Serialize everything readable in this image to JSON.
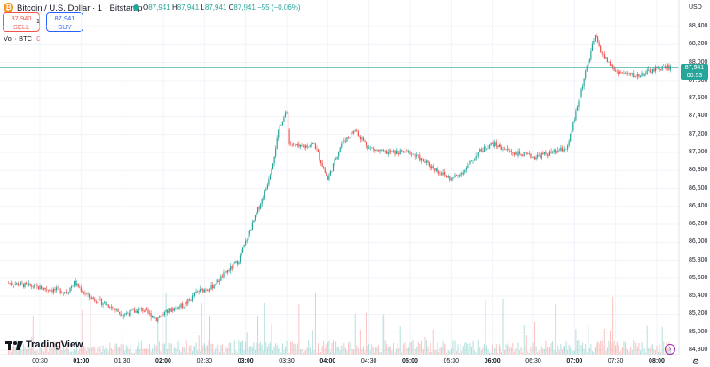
{
  "header": {
    "title": "Bitcoin / U.S. Dollar · 1 · Bitstamp",
    "ohlc": {
      "open_label": "O",
      "open": "87,941",
      "high_label": "H",
      "high": "87,941",
      "low_label": "L",
      "low": "87,941",
      "close_label": "C",
      "close": "87,941",
      "change": "−55 (−0.06%)"
    },
    "currency": "USD"
  },
  "trade": {
    "sell_price": "87,940",
    "sell_label": "SELL",
    "spread": "1",
    "buy_price": "87,941",
    "buy_label": "BUY"
  },
  "volume_indicator": {
    "label": "Vol · BTC",
    "value": "0"
  },
  "price_tag": {
    "price": "87,941",
    "countdown": "00:53"
  },
  "brand": {
    "name": "TradingView"
  },
  "colors": {
    "up": "#26a69a",
    "down": "#ef5350",
    "line": "#26a69a"
  },
  "y_axis_labels": [
    "88,400",
    "88,200",
    "88,000",
    "87,800",
    "87,600",
    "87,400",
    "87,200",
    "87,000",
    "86,800",
    "86,600",
    "86,400",
    "86,200",
    "86,000",
    "85,800",
    "85,600",
    "85,400",
    "85,200",
    "85,000",
    "84,800"
  ],
  "x_axis_labels": [
    {
      "text": "00:30",
      "bold": false
    },
    {
      "text": "01:00",
      "bold": true
    },
    {
      "text": "01:30",
      "bold": false
    },
    {
      "text": "02:00",
      "bold": true
    },
    {
      "text": "02:30",
      "bold": false
    },
    {
      "text": "03:00",
      "bold": true
    },
    {
      "text": "03:30",
      "bold": false
    },
    {
      "text": "04:00",
      "bold": true
    },
    {
      "text": "04:30",
      "bold": false
    },
    {
      "text": "05:00",
      "bold": true
    },
    {
      "text": "05:30",
      "bold": false
    },
    {
      "text": "06:00",
      "bold": true
    },
    {
      "text": "06:30",
      "bold": false
    },
    {
      "text": "07:00",
      "bold": true
    },
    {
      "text": "07:30",
      "bold": false
    },
    {
      "text": "08:00",
      "bold": true
    }
  ],
  "chart_data": {
    "type": "candlestick",
    "ylim": [
      84800,
      88500
    ],
    "x_start": "00:07",
    "x_end": "08:10",
    "interval_minutes": 1,
    "price_path": [
      [
        "00:07",
        85550
      ],
      [
        "00:20",
        85520
      ],
      [
        "00:35",
        85480
      ],
      [
        "00:50",
        85450
      ],
      [
        "00:55",
        85550
      ],
      [
        "01:05",
        85400
      ],
      [
        "01:20",
        85300
      ],
      [
        "01:30",
        85200
      ],
      [
        "01:45",
        85250
      ],
      [
        "01:55",
        85150
      ],
      [
        "02:05",
        85250
      ],
      [
        "02:15",
        85300
      ],
      [
        "02:25",
        85450
      ],
      [
        "02:35",
        85500
      ],
      [
        "02:45",
        85650
      ],
      [
        "02:55",
        85800
      ],
      [
        "03:05",
        86200
      ],
      [
        "03:10",
        86400
      ],
      [
        "03:15",
        86600
      ],
      [
        "03:20",
        86900
      ],
      [
        "03:25",
        87300
      ],
      [
        "03:30",
        87450
      ],
      [
        "03:32",
        87100
      ],
      [
        "03:40",
        87050
      ],
      [
        "03:50",
        87100
      ],
      [
        "04:00",
        86700
      ],
      [
        "04:10",
        87100
      ],
      [
        "04:20",
        87250
      ],
      [
        "04:30",
        87050
      ],
      [
        "04:40",
        87000
      ],
      [
        "05:00",
        87000
      ],
      [
        "05:15",
        86850
      ],
      [
        "05:30",
        86700
      ],
      [
        "05:40",
        86800
      ],
      [
        "05:50",
        87000
      ],
      [
        "06:00",
        87100
      ],
      [
        "06:15",
        87000
      ],
      [
        "06:30",
        86950
      ],
      [
        "06:45",
        87000
      ],
      [
        "06:55",
        87050
      ],
      [
        "07:05",
        87700
      ],
      [
        "07:15",
        88300
      ],
      [
        "07:20",
        88100
      ],
      [
        "07:30",
        87900
      ],
      [
        "07:45",
        87850
      ],
      [
        "07:55",
        87900
      ],
      [
        "08:05",
        87950
      ]
    ]
  }
}
